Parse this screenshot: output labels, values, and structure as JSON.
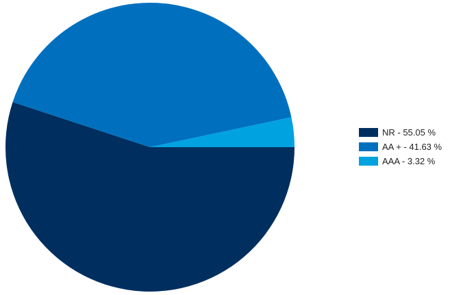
{
  "chart_data": {
    "type": "pie",
    "slices": [
      {
        "label": "NR - 55.05 %",
        "value": 55.05,
        "color": "#002F5F"
      },
      {
        "label": "AA + - 41.63 %",
        "value": 41.63,
        "color": "#0070BE"
      },
      {
        "label": "AAA - 3.32 %",
        "value": 3.32,
        "color": "#00A3E0"
      }
    ],
    "title": "",
    "legend": "right"
  }
}
